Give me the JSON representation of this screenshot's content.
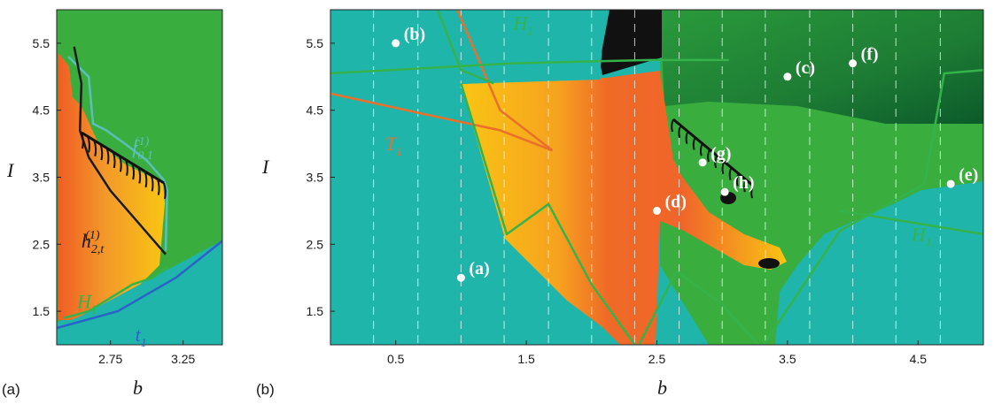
{
  "chart_data": [
    {
      "panel": "(a)",
      "type": "heatmap",
      "xlabel": "b",
      "ylabel": "I",
      "xlim": [
        2.38,
        3.52
      ],
      "ylim": [
        1.0,
        6.0
      ],
      "x_ticks": [
        "2.75",
        "3.25"
      ],
      "x_tick_values": [
        2.75,
        3.25
      ],
      "y_ticks": [
        "1.5",
        "2.5",
        "3.5",
        "4.5",
        "5.5"
      ],
      "y_tick_values": [
        1.5,
        2.5,
        3.5,
        4.5,
        5.5
      ],
      "curve_labels": [
        {
          "id": "f01",
          "main": "f",
          "sub": "0,1",
          "sup": "(1)",
          "color": "#5bc0b8",
          "at": [
            2.9,
            3.85
          ]
        },
        {
          "id": "h2t",
          "main": "h",
          "sub": "2,t",
          "sup": "(1)",
          "color": "#1a1a1a",
          "at": [
            2.55,
            2.45
          ]
        },
        {
          "id": "H1",
          "main": "H",
          "sub": "1",
          "sup": "",
          "color": "#35b34a",
          "at": [
            2.52,
            1.55
          ]
        },
        {
          "id": "t1",
          "main": "t",
          "sub": "1",
          "sup": "",
          "color": "#2a62c9",
          "at": [
            2.92,
            1.05
          ]
        }
      ],
      "curves": {
        "f01": [
          [
            2.46,
            5.3
          ],
          [
            2.6,
            5.0
          ],
          [
            2.63,
            4.3
          ],
          [
            2.72,
            4.2
          ],
          [
            2.85,
            4.0
          ],
          [
            3.0,
            3.75
          ],
          [
            3.12,
            3.45
          ],
          [
            3.14,
            3.3
          ],
          [
            3.13,
            2.4
          ]
        ],
        "h2t": [
          [
            2.5,
            5.45
          ],
          [
            2.55,
            4.9
          ],
          [
            2.54,
            4.2
          ],
          [
            2.6,
            3.8
          ],
          [
            2.75,
            3.3
          ],
          [
            2.95,
            2.8
          ],
          [
            3.13,
            2.35
          ]
        ],
        "H1": [
          [
            2.43,
            1.4
          ],
          [
            2.6,
            1.5
          ],
          [
            2.9,
            1.9
          ],
          [
            3.04,
            2.0
          ],
          [
            3.14,
            2.15
          ]
        ],
        "t1": [
          [
            2.38,
            1.25
          ],
          [
            2.8,
            1.5
          ],
          [
            3.2,
            2.0
          ],
          [
            3.52,
            2.55
          ]
        ]
      },
      "colors": {
        "background": "#1fb5aa",
        "green": "#3aad3f",
        "orange": "#f07a2a",
        "yellow": "#f9c513"
      }
    },
    {
      "panel": "(b)",
      "type": "heatmap",
      "xlabel": "b",
      "ylabel": "I",
      "xlim": [
        0.0,
        5.0
      ],
      "ylim": [
        1.0,
        6.0
      ],
      "x_ticks": [
        "0.5",
        "1.5",
        "2.5",
        "3.5",
        "4.5"
      ],
      "x_tick_values": [
        0.5,
        1.5,
        2.5,
        3.5,
        4.5
      ],
      "y_ticks": [
        "1.5",
        "2.5",
        "3.5",
        "4.5",
        "5.5"
      ],
      "y_tick_values": [
        1.5,
        2.5,
        3.5,
        4.5,
        5.5
      ],
      "dashed_gridlines_b": [
        0.33,
        0.67,
        1.0,
        1.33,
        1.67,
        2.0,
        2.33,
        2.67,
        3.0,
        3.33,
        3.67,
        4.0,
        4.33,
        4.67
      ],
      "points": [
        {
          "label": "(a)",
          "b": 1.0,
          "I": 2.0
        },
        {
          "label": "(b)",
          "b": 0.5,
          "I": 5.5
        },
        {
          "label": "(c)",
          "b": 3.5,
          "I": 5.0
        },
        {
          "label": "(d)",
          "b": 2.5,
          "I": 3.0
        },
        {
          "label": "(e)",
          "b": 4.75,
          "I": 3.4
        },
        {
          "label": "(f)",
          "b": 4.0,
          "I": 5.2
        },
        {
          "label": "(g)",
          "b": 2.85,
          "I": 3.72
        },
        {
          "label": "(h)",
          "b": 3.02,
          "I": 3.28
        }
      ],
      "curve_labels": [
        {
          "id": "H1_top",
          "main": "H",
          "sub": "1",
          "color": "#35b34a",
          "at": [
            1.4,
            5.7
          ]
        },
        {
          "id": "T1",
          "main": "T",
          "sub": "1",
          "color": "#e8702a",
          "at": [
            0.42,
            3.9
          ]
        },
        {
          "id": "H1_right",
          "main": "H",
          "sub": "1",
          "color": "#35b34a",
          "at": [
            4.45,
            2.55
          ]
        }
      ],
      "curves": {
        "H1_orange_a": [
          [
            0.0,
            4.75
          ],
          [
            0.7,
            4.45
          ],
          [
            1.3,
            4.2
          ],
          [
            1.7,
            3.9
          ]
        ],
        "H1_orange_b": [
          [
            0.95,
            6.1
          ],
          [
            1.3,
            4.5
          ],
          [
            1.5,
            4.2
          ],
          [
            1.7,
            3.9
          ]
        ],
        "H1_green_top": [
          [
            0.0,
            5.05
          ],
          [
            1.4,
            5.2
          ],
          [
            2.45,
            5.25
          ],
          [
            3.05,
            5.25
          ]
        ],
        "H1_green_mid": [
          [
            0.8,
            6.1
          ],
          [
            1.0,
            5.1
          ],
          [
            1.25,
            4.9
          ]
        ],
        "H1_green_lower": [
          [
            1.0,
            4.9
          ],
          [
            1.35,
            2.65
          ],
          [
            1.67,
            3.1
          ],
          [
            2.0,
            1.9
          ],
          [
            2.35,
            0.95
          ]
        ],
        "H1_green_bottom": [
          [
            2.35,
            0.95
          ],
          [
            2.65,
            2.1
          ],
          [
            3.0,
            1.6
          ],
          [
            3.3,
            0.95
          ]
        ],
        "H1_right": [
          [
            3.3,
            0.95
          ],
          [
            3.9,
            2.7
          ],
          [
            4.55,
            3.4
          ],
          [
            4.7,
            5.05
          ],
          [
            5.0,
            5.1
          ]
        ],
        "H1_right_tail": [
          [
            3.9,
            3.0
          ],
          [
            5.0,
            2.65
          ]
        ]
      },
      "colors": {
        "background": "#1fb5aa",
        "green": "#3aad3f",
        "dark_green": "#0b5a2a",
        "black": "#111111",
        "orange": "#f07a2a",
        "yellow": "#f9c513"
      }
    }
  ]
}
